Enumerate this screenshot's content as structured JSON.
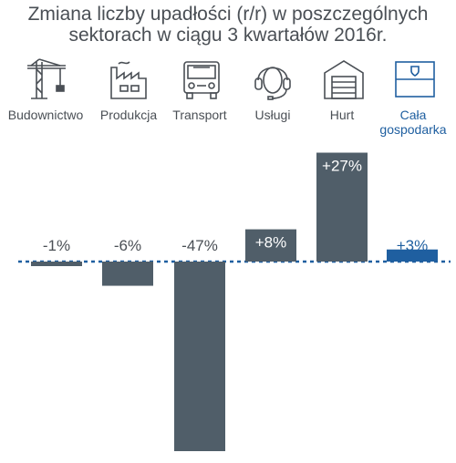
{
  "title_line1": "Zmiana liczby upadłości (r/r) w poszczególnych",
  "title_line2": "sektorach w ciągu 3 kwartałów 2016r.",
  "colors": {
    "bar": "#505e69",
    "accent": "#1f5fa0",
    "text": "#4a4f55"
  },
  "categories": [
    {
      "label": "Budownictwo",
      "icon": "crane-icon"
    },
    {
      "label": "Produkcja",
      "icon": "factory-icon"
    },
    {
      "label": "Transport",
      "icon": "truck-icon"
    },
    {
      "label": "Usługi",
      "icon": "headset-icon"
    },
    {
      "label": "Hurt",
      "icon": "warehouse-icon"
    },
    {
      "label": "Cała gospodarka",
      "icon": "flag-icon"
    }
  ],
  "chart_data": {
    "type": "bar",
    "title": "Zmiana liczby upadłości (r/r) w poszczególnych sektorach w ciągu 3 kwartałów 2016r.",
    "categories": [
      "Budownictwo",
      "Produkcja",
      "Transport",
      "Usługi",
      "Hurt",
      "Cała gospodarka"
    ],
    "values": [
      -1,
      -6,
      -47,
      8,
      27,
      3
    ],
    "value_labels": [
      "-1%",
      "-6%",
      "-47%",
      "+8%",
      "+27%",
      "+3%"
    ],
    "unit": "%",
    "ylim": [
      -47,
      27
    ],
    "grid": false,
    "highlight_index": 5
  }
}
